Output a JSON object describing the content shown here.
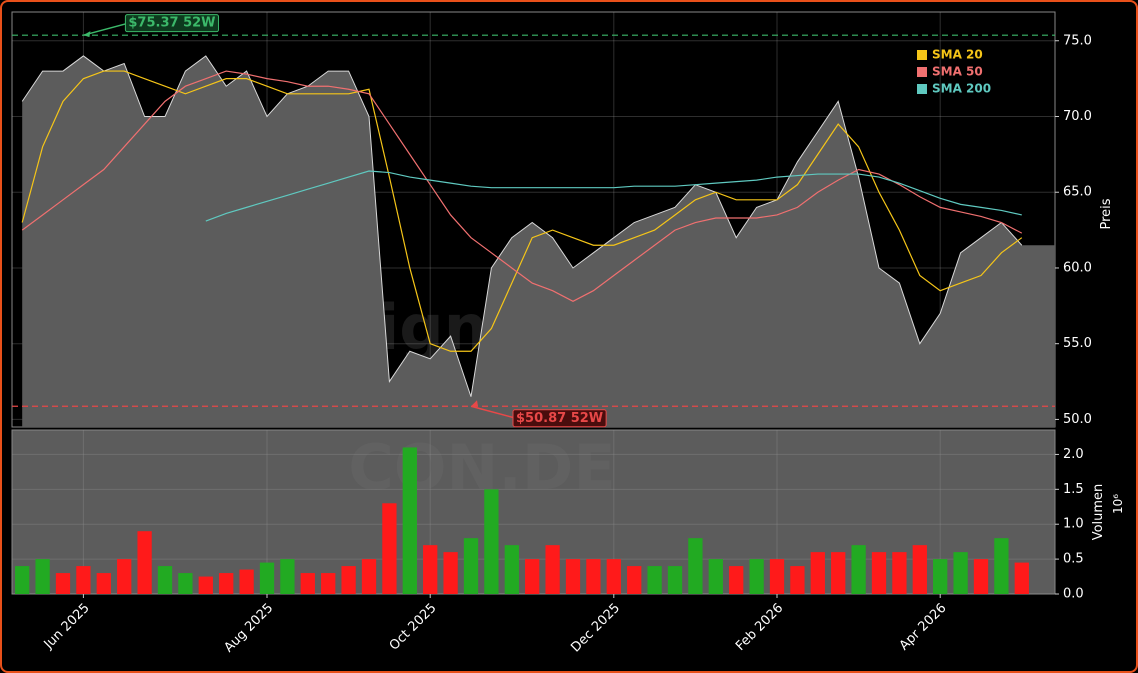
{
  "chart_data": [
    {
      "type": "line",
      "watermark": "forexsignale.trade",
      "ylabel": "Preis",
      "ylim": [
        49.5,
        76.9
      ],
      "yticks": [
        {
          "value": 50,
          "label": "50.0"
        },
        {
          "value": 55,
          "label": "55.0"
        },
        {
          "value": 60,
          "label": "60.0"
        },
        {
          "value": 65,
          "label": "65.0"
        },
        {
          "value": 70,
          "label": "70.0"
        },
        {
          "value": 75,
          "label": "75.0"
        }
      ],
      "grid": true,
      "legend": "upper right",
      "series": [
        {
          "color": "#d8d8d8",
          "fill": "#5c5c5c",
          "values": [
            71,
            73,
            73,
            74,
            73,
            73.5,
            70,
            70,
            73,
            74,
            72,
            73,
            70,
            71.5,
            72,
            73,
            73,
            70,
            52.5,
            54.5,
            54,
            55.5,
            51.5,
            60,
            62,
            63,
            62,
            60,
            61,
            62,
            63,
            63.5,
            64,
            65.5,
            65,
            62,
            64,
            64.5,
            67,
            69,
            71,
            66,
            60,
            59,
            55,
            57,
            61,
            62,
            63,
            61.5
          ]
        },
        {
          "name": "SMA 20",
          "color": "#f5c518",
          "values": [
            63,
            68,
            71,
            72.5,
            73,
            73,
            72.5,
            72,
            71.5,
            72,
            72.5,
            72.5,
            72,
            71.5,
            71.5,
            71.5,
            71.5,
            71.8,
            66,
            60,
            55,
            54.5,
            54.5,
            56,
            59,
            62,
            62.5,
            62,
            61.5,
            61.5,
            62,
            62.5,
            63.5,
            64.5,
            65,
            64.5,
            64.5,
            64.5,
            65.5,
            67.5,
            69.5,
            68,
            65,
            62.5,
            59.5,
            58.5,
            59,
            59.5,
            61,
            62
          ]
        },
        {
          "name": "SMA 50",
          "color": "#f07070",
          "values": [
            62.5,
            63.5,
            64.5,
            65.5,
            66.5,
            68,
            69.5,
            71,
            72,
            72.5,
            73,
            72.8,
            72.5,
            72.3,
            72,
            72,
            71.8,
            71.5,
            69.5,
            67.5,
            65.5,
            63.5,
            62,
            61,
            60,
            59,
            58.5,
            57.8,
            58.5,
            59.5,
            60.5,
            61.5,
            62.5,
            63,
            63.3,
            63.3,
            63.3,
            63.5,
            64,
            65,
            65.8,
            66.5,
            66.2,
            65.5,
            64.7,
            64,
            63.7,
            63.4,
            63,
            62.3
          ]
        },
        {
          "name": "SMA 200",
          "color": "#5fc9c0",
          "values": [
            null,
            null,
            null,
            null,
            null,
            null,
            null,
            null,
            null,
            63.1,
            63.6,
            64,
            64.4,
            64.8,
            65.2,
            65.6,
            66,
            66.4,
            66.3,
            66,
            65.8,
            65.6,
            65.4,
            65.3,
            65.3,
            65.3,
            65.3,
            65.3,
            65.3,
            65.3,
            65.4,
            65.4,
            65.4,
            65.5,
            65.6,
            65.7,
            65.8,
            66,
            66.1,
            66.2,
            66.2,
            66.2,
            66,
            65.6,
            65.1,
            64.6,
            64.2,
            64,
            63.8,
            63.5
          ]
        }
      ],
      "hlines": [
        {
          "value": 75.37,
          "label": "$75.37 52W",
          "color": "#3cb96a",
          "at": 3
        },
        {
          "value": 50.87,
          "label": "$50.87 52W",
          "color": "#e84848",
          "at": 22
        }
      ]
    },
    {
      "type": "bar",
      "watermark": "CON.DE",
      "ylabel": "Volumen",
      "offset_label": "10⁶",
      "ylim": [
        0,
        2.35
      ],
      "yticks": [
        {
          "value": 0,
          "label": "0.0"
        },
        {
          "value": 0.5,
          "label": "0.5"
        },
        {
          "value": 1,
          "label": "1.0"
        },
        {
          "value": 1.5,
          "label": "1.5"
        },
        {
          "value": 2,
          "label": "2.0"
        }
      ],
      "grid": true,
      "categories": [
        null,
        null,
        null,
        "Jun 2025",
        null,
        null,
        null,
        null,
        null,
        null,
        null,
        null,
        "Aug 2025",
        null,
        null,
        null,
        null,
        null,
        null,
        null,
        "Oct 2025",
        null,
        null,
        null,
        null,
        null,
        null,
        null,
        null,
        "Dec 2025",
        null,
        null,
        null,
        null,
        null,
        null,
        null,
        "Feb 2026",
        null,
        null,
        null,
        null,
        null,
        null,
        null,
        "Apr 2026",
        null,
        null,
        null,
        null
      ],
      "values": [
        0.4,
        0.5,
        0.3,
        0.4,
        0.3,
        0.5,
        0.9,
        0.4,
        0.3,
        0.25,
        0.3,
        0.35,
        0.45,
        0.5,
        0.3,
        0.3,
        0.4,
        0.5,
        1.3,
        2.1,
        0.7,
        0.6,
        0.8,
        1.5,
        0.7,
        0.5,
        0.7,
        0.5,
        0.5,
        0.5,
        0.4,
        0.4,
        0.4,
        0.8,
        0.5,
        0.4,
        0.5,
        0.5,
        0.4,
        0.6,
        0.6,
        0.7,
        0.6,
        0.6,
        0.7,
        0.5,
        0.6,
        0.5,
        0.8,
        0.45
      ],
      "colors": [
        "#22aa22",
        "#22aa22",
        "#ff1a1a",
        "#ff1a1a",
        "#ff1a1a",
        "#ff1a1a",
        "#ff1a1a",
        "#22aa22",
        "#22aa22",
        "#ff1a1a",
        "#ff1a1a",
        "#ff1a1a",
        "#22aa22",
        "#22aa22",
        "#ff1a1a",
        "#ff1a1a",
        "#ff1a1a",
        "#ff1a1a",
        "#ff1a1a",
        "#22aa22",
        "#ff1a1a",
        "#ff1a1a",
        "#22aa22",
        "#22aa22",
        "#22aa22",
        "#ff1a1a",
        "#ff1a1a",
        "#ff1a1a",
        "#ff1a1a",
        "#ff1a1a",
        "#ff1a1a",
        "#22aa22",
        "#22aa22",
        "#22aa22",
        "#22aa22",
        "#ff1a1a",
        "#22aa22",
        "#ff1a1a",
        "#ff1a1a",
        "#ff1a1a",
        "#ff1a1a",
        "#22aa22",
        "#ff1a1a",
        "#ff1a1a",
        "#ff1a1a",
        "#22aa22",
        "#22aa22",
        "#ff1a1a",
        "#22aa22",
        "#ff1a1a"
      ]
    }
  ]
}
